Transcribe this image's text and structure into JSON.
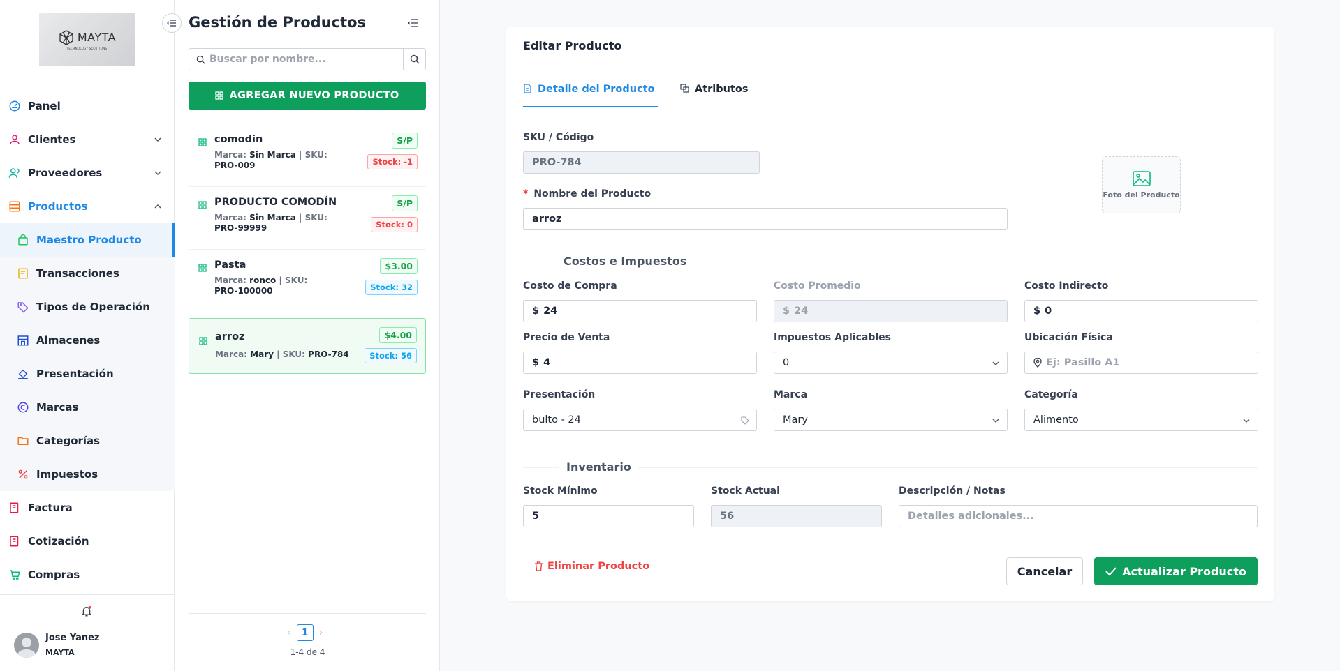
{
  "brand": {
    "logo_name": "MAYTA",
    "logo_tagline": "TECHNOLOGY SOLUTIONS"
  },
  "sidebar": {
    "items": [
      {
        "label": "Panel",
        "icon": "dashboard-icon"
      },
      {
        "label": "Clientes",
        "icon": "user-icon"
      },
      {
        "label": "Proveedores",
        "icon": "users-icon"
      },
      {
        "label": "Productos",
        "icon": "layers-icon"
      }
    ],
    "sub_items": [
      {
        "label": "Maestro Producto",
        "icon": "bag-icon"
      },
      {
        "label": "Transacciones",
        "icon": "receipt-icon"
      },
      {
        "label": "Tipos de Operación",
        "icon": "tag-icon"
      },
      {
        "label": "Almacenes",
        "icon": "store-icon"
      },
      {
        "label": "Presentación",
        "icon": "paint-bucket-icon"
      },
      {
        "label": "Marcas",
        "icon": "copyright-icon"
      },
      {
        "label": "Categorías",
        "icon": "folder-icon"
      },
      {
        "label": "Impuestos",
        "icon": "percent-icon"
      }
    ],
    "bottom_items": [
      {
        "label": "Factura",
        "icon": "invoice-icon"
      },
      {
        "label": "Cotización",
        "icon": "quote-icon"
      },
      {
        "label": "Compras",
        "icon": "cart-icon"
      }
    ],
    "user": {
      "name": "Jose Yanez",
      "org": "MAYTA"
    }
  },
  "list_panel": {
    "title": "Gestión de Productos",
    "search_placeholder": "Buscar por nombre...",
    "add_button": "AGREGAR NUEVO PRODUCTO",
    "meta_brand_label": "Marca:",
    "meta_sku_label": "SKU:",
    "products": [
      {
        "name": "comodin",
        "brand": "Sin Marca",
        "sku": "PRO-009",
        "price": "S/P",
        "stock": "Stock: -1"
      },
      {
        "name": "PRODUCTO COMODÍN",
        "brand": "Sin Marca",
        "sku": "PRO-99999",
        "price": "S/P",
        "stock": "Stock: 0"
      },
      {
        "name": "Pasta",
        "brand": "ronco",
        "sku": "PRO-100000",
        "price": "$3.00",
        "stock": "Stock: 32"
      },
      {
        "name": "arroz",
        "brand": "Mary",
        "sku": "PRO-784",
        "price": "$4.00",
        "stock": "Stock: 56"
      }
    ],
    "pagination": {
      "current": "1",
      "count": "1-4 de 4"
    }
  },
  "form": {
    "title": "Editar Producto",
    "tabs": [
      "Detalle del Producto",
      "Atributos"
    ],
    "sku_label": "SKU / Código",
    "sku_value": "PRO-784",
    "name_label": "Nombre del Producto",
    "name_value": "arroz",
    "photo_label": "Foto del Producto",
    "section_costs": "Costos e Impuestos",
    "currency": "$",
    "cost_label": "Costo de Compra",
    "cost_value": "24",
    "avg_cost_label": "Costo Promedio",
    "avg_cost_value": "24",
    "indirect_label": "Costo Indirecto",
    "indirect_value": "0",
    "price_label": "Precio de Venta",
    "price_value": "4",
    "tax_label": "Impuestos Aplicables",
    "tax_value": "0",
    "location_label": "Ubicación Física",
    "location_placeholder": "Ej: Pasillo A1",
    "presentation_label": "Presentación",
    "presentation_value": "bulto - 24",
    "brand_label": "Marca",
    "brand_value": "Mary",
    "category_label": "Categoría",
    "category_value": "Alimento",
    "section_inventory": "Inventario",
    "min_stock_label": "Stock Mínimo",
    "min_stock_value": "5",
    "current_stock_label": "Stock Actual",
    "current_stock_value": "56",
    "notes_label": "Descripción / Notas",
    "notes_placeholder": "Detalles adicionales...",
    "delete_button": "Eliminar Producto",
    "cancel_button": "Cancelar",
    "save_button": "Actualizar Producto"
  },
  "colors": {
    "accent": "#1e88e5",
    "primary_green": "#0e9f5c",
    "danger": "#ef4444"
  }
}
